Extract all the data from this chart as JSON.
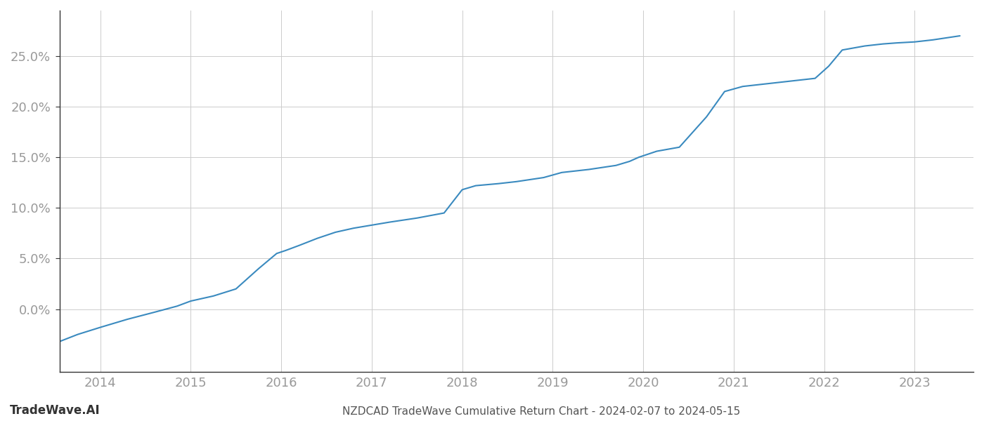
{
  "title": "NZDCAD TradeWave Cumulative Return Chart - 2024-02-07 to 2024-05-15",
  "watermark": "TradeWave.AI",
  "line_color": "#3a8abf",
  "background_color": "#ffffff",
  "grid_color": "#cccccc",
  "x_years": [
    2014,
    2015,
    2016,
    2017,
    2018,
    2019,
    2020,
    2021,
    2022,
    2023
  ],
  "y_ticks": [
    0.0,
    0.05,
    0.1,
    0.15,
    0.2,
    0.25
  ],
  "y_tick_labels": [
    "0.0%",
    "5.0%",
    "10.0%",
    "15.0%",
    "20.0%",
    "25.0%"
  ],
  "xlim_start": 2013.55,
  "xlim_end": 2023.65,
  "ylim_min": -0.062,
  "ylim_max": 0.295,
  "data_x": [
    2013.55,
    2013.75,
    2014.0,
    2014.3,
    2014.6,
    2014.85,
    2015.0,
    2015.1,
    2015.25,
    2015.5,
    2015.75,
    2015.95,
    2016.05,
    2016.2,
    2016.4,
    2016.6,
    2016.8,
    2017.0,
    2017.2,
    2017.5,
    2017.8,
    2018.0,
    2018.15,
    2018.4,
    2018.6,
    2018.9,
    2019.1,
    2019.4,
    2019.7,
    2019.85,
    2019.95,
    2020.05,
    2020.15,
    2020.4,
    2020.7,
    2020.9,
    2021.1,
    2021.3,
    2021.5,
    2021.7,
    2021.9,
    2022.05,
    2022.2,
    2022.45,
    2022.65,
    2022.8,
    2023.0,
    2023.2,
    2023.5
  ],
  "data_y": [
    -0.032,
    -0.025,
    -0.018,
    -0.01,
    -0.003,
    0.003,
    0.008,
    0.01,
    0.013,
    0.02,
    0.04,
    0.055,
    0.058,
    0.063,
    0.07,
    0.076,
    0.08,
    0.083,
    0.086,
    0.09,
    0.095,
    0.118,
    0.122,
    0.124,
    0.126,
    0.13,
    0.135,
    0.138,
    0.142,
    0.146,
    0.15,
    0.153,
    0.156,
    0.16,
    0.19,
    0.215,
    0.22,
    0.222,
    0.224,
    0.226,
    0.228,
    0.24,
    0.256,
    0.26,
    0.262,
    0.263,
    0.264,
    0.266,
    0.27
  ]
}
